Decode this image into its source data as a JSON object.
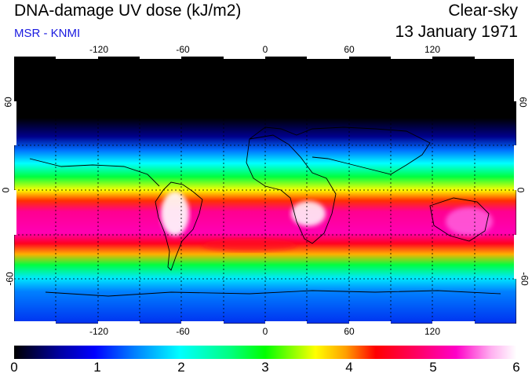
{
  "header": {
    "title": "DNA-damage UV dose (kJ/m2)",
    "source": "MSR - KNMI",
    "condition": "Clear-sky",
    "date": "13 January 1971"
  },
  "map": {
    "lon_ticks": [
      "-120",
      "-60",
      "0",
      "60",
      "120"
    ],
    "lat_ticks": [
      "60",
      "0",
      "-60"
    ],
    "lon_values": [
      -120,
      -60,
      0,
      60,
      120
    ],
    "lat_values": [
      60,
      0,
      -60
    ],
    "lon_range": [
      -180,
      180
    ],
    "lat_range": [
      -90,
      90
    ]
  },
  "colorbar": {
    "labels": [
      "0",
      "1",
      "2",
      "3",
      "4",
      "5",
      "6"
    ],
    "range": [
      0,
      6
    ],
    "colors": [
      "#000000",
      "#0000ff",
      "#00ffff",
      "#00ff00",
      "#ffff00",
      "#ff0000",
      "#ff00c8",
      "#ffffff"
    ]
  }
}
